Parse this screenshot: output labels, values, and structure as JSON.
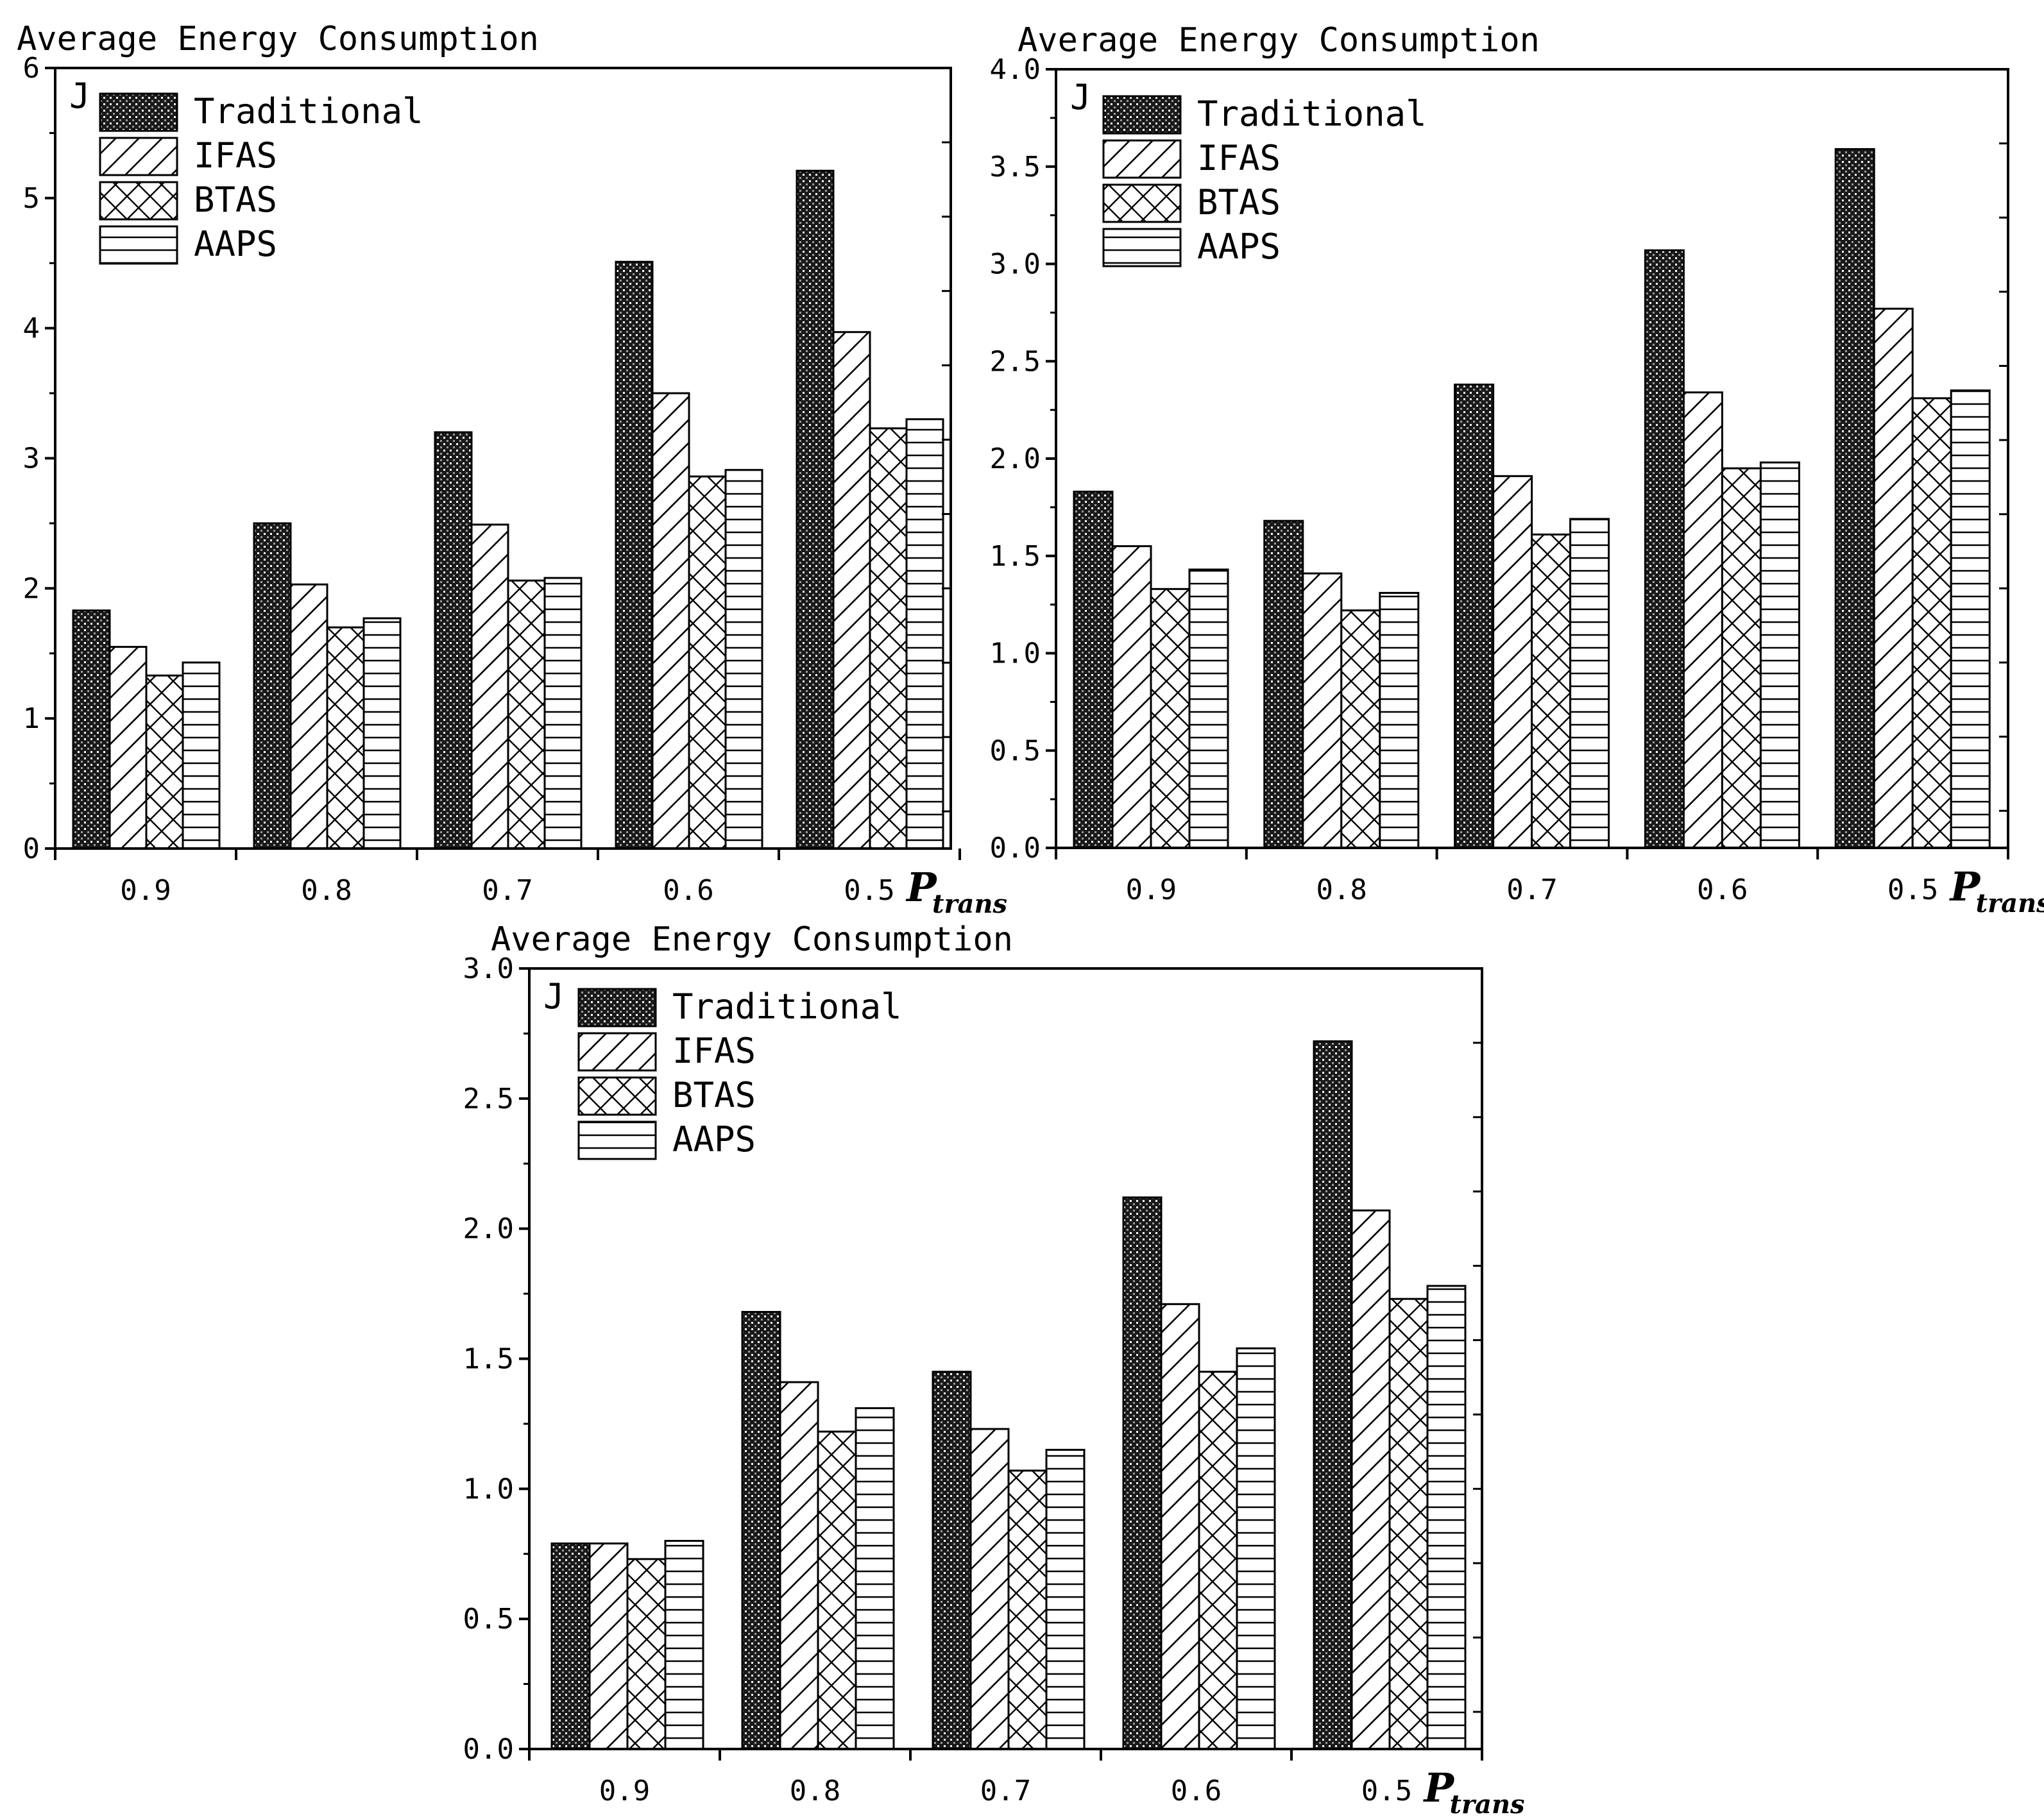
{
  "chart_data": [
    {
      "type": "bar",
      "title": "Average Energy Consumption",
      "ylabel": "J",
      "xlabel": "Ptrans",
      "xlabel_main": "P",
      "xlabel_sub": "trans",
      "categories": [
        "0.9",
        "0.8",
        "0.7",
        "0.6",
        "0.5"
      ],
      "ylim": [
        0,
        6
      ],
      "yticks": [
        "0",
        "1",
        "2",
        "3",
        "4",
        "5",
        "6"
      ],
      "legend_position": "top-left",
      "series": [
        {
          "name": "Traditional",
          "values": [
            1.83,
            2.5,
            3.2,
            4.51,
            5.21
          ]
        },
        {
          "name": "IFAS",
          "values": [
            1.55,
            2.03,
            2.49,
            3.5,
            3.97
          ]
        },
        {
          "name": "BTAS",
          "values": [
            1.33,
            1.7,
            2.06,
            2.86,
            3.23
          ]
        },
        {
          "name": "AAPS",
          "values": [
            1.43,
            1.77,
            2.08,
            2.91,
            3.3
          ]
        }
      ]
    },
    {
      "type": "bar",
      "title": "Average Energy Consumption",
      "ylabel": "J",
      "xlabel": "Ptrans",
      "xlabel_main": "P",
      "xlabel_sub": "trans",
      "categories": [
        "0.9",
        "0.8",
        "0.7",
        "0.6",
        "0.5"
      ],
      "ylim": [
        0,
        4
      ],
      "yticks": [
        "0.0",
        "0.5",
        "1.0",
        "1.5",
        "2.0",
        "2.5",
        "3.0",
        "3.5",
        "4.0"
      ],
      "legend_position": "top-left",
      "series": [
        {
          "name": "Traditional",
          "values": [
            1.83,
            1.68,
            2.38,
            3.07,
            3.59
          ]
        },
        {
          "name": "IFAS",
          "values": [
            1.55,
            1.41,
            1.91,
            2.34,
            2.77
          ]
        },
        {
          "name": "BTAS",
          "values": [
            1.33,
            1.22,
            1.61,
            1.95,
            2.31
          ]
        },
        {
          "name": "AAPS",
          "values": [
            1.43,
            1.31,
            1.69,
            1.98,
            2.35
          ]
        }
      ]
    },
    {
      "type": "bar",
      "title": "Average Energy Consumption",
      "ylabel": "J",
      "xlabel": "Ptrans",
      "xlabel_main": "P",
      "xlabel_sub": "trans",
      "categories": [
        "0.9",
        "0.8",
        "0.7",
        "0.6",
        "0.5"
      ],
      "ylim": [
        0,
        3
      ],
      "yticks": [
        "0.0",
        "0.5",
        "1.0",
        "1.5",
        "2.0",
        "2.5",
        "3.0"
      ],
      "legend_position": "top-left",
      "series": [
        {
          "name": "Traditional",
          "values": [
            0.79,
            1.68,
            1.45,
            2.12,
            2.72
          ]
        },
        {
          "name": "IFAS",
          "values": [
            0.79,
            1.41,
            1.23,
            1.71,
            2.07
          ]
        },
        {
          "name": "BTAS",
          "values": [
            0.73,
            1.22,
            1.07,
            1.45,
            1.73
          ]
        },
        {
          "name": "AAPS",
          "values": [
            0.8,
            1.31,
            1.15,
            1.54,
            1.78
          ]
        }
      ]
    }
  ]
}
